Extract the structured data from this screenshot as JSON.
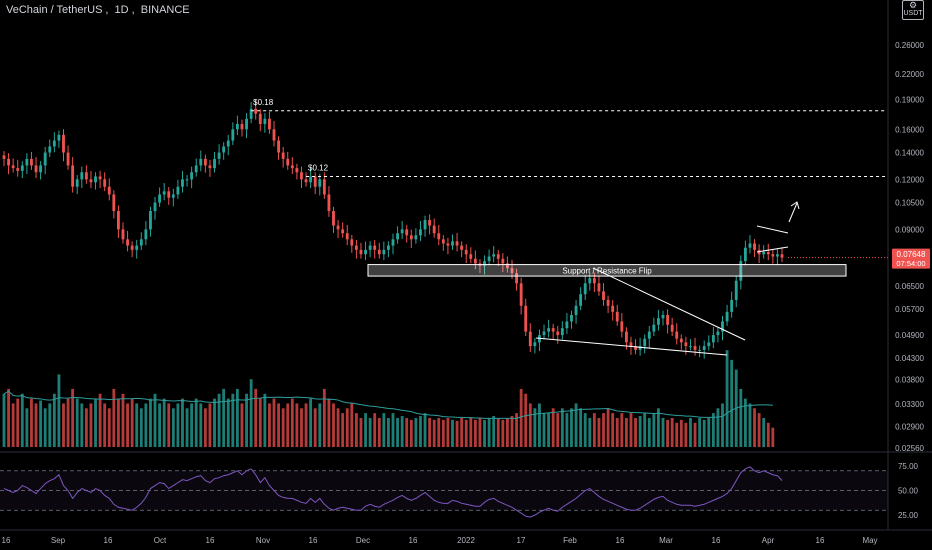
{
  "header": {
    "symbol": "VeChain / TetherUS",
    "interval": "1D",
    "exchange": "BINANCE"
  },
  "currency_badge": {
    "label": "USDT",
    "icon": "gear-icon"
  },
  "colors": {
    "up": "#26a69a",
    "down": "#ef5350",
    "price_tag": "#ef5350",
    "volume_ma": "#2e9e9e",
    "rsi": "#7e57c2",
    "text": "#b2b5be",
    "annotation": "#ffffff"
  },
  "chart_data": [
    {
      "type": "candlestick",
      "title": "VeChain / TetherUS, 1D, BINANCE",
      "y_scale": "log",
      "ylim": [
        0.0256,
        0.3
      ],
      "y_ticks": [
        "0.26000",
        "0.22000",
        "0.19000",
        "0.16000",
        "0.14000",
        "0.12000",
        "0.10500",
        "0.09000",
        "0.07648",
        "0.06500",
        "0.05700",
        "0.04900",
        "0.04300",
        "0.03800",
        "0.03300",
        "0.02900",
        "0.02560"
      ],
      "last_price": "0.07648",
      "countdown": "07:54:00",
      "x_tick_labels": [
        "16",
        "Sep",
        "16",
        "Oct",
        "16",
        "Nov",
        "16",
        "Dec",
        "16",
        "2022",
        "17",
        "Feb",
        "16",
        "Mar",
        "16",
        "Apr",
        "16",
        "May"
      ],
      "annotations": [
        {
          "text": "$0.18",
          "level": 0.178
        },
        {
          "text": "$0.12",
          "level": 0.122
        },
        {
          "text": "Support / Resistance Flip",
          "zone": [
            0.0688,
            0.0735
          ]
        }
      ],
      "close_path": [
        0.135,
        0.13,
        0.128,
        0.126,
        0.13,
        0.135,
        0.13,
        0.125,
        0.13,
        0.14,
        0.145,
        0.15,
        0.155,
        0.14,
        0.13,
        0.115,
        0.12,
        0.125,
        0.12,
        0.118,
        0.122,
        0.12,
        0.115,
        0.11,
        0.1,
        0.09,
        0.085,
        0.082,
        0.08,
        0.082,
        0.085,
        0.09,
        0.1,
        0.105,
        0.11,
        0.112,
        0.108,
        0.11,
        0.115,
        0.12,
        0.12,
        0.125,
        0.13,
        0.135,
        0.13,
        0.128,
        0.135,
        0.14,
        0.145,
        0.15,
        0.16,
        0.165,
        0.16,
        0.17,
        0.18,
        0.175,
        0.165,
        0.17,
        0.16,
        0.15,
        0.14,
        0.135,
        0.13,
        0.128,
        0.125,
        0.12,
        0.118,
        0.122,
        0.115,
        0.12,
        0.11,
        0.1,
        0.092,
        0.09,
        0.088,
        0.085,
        0.082,
        0.08,
        0.078,
        0.08,
        0.082,
        0.08,
        0.078,
        0.08,
        0.082,
        0.085,
        0.088,
        0.09,
        0.087,
        0.085,
        0.087,
        0.09,
        0.095,
        0.092,
        0.088,
        0.085,
        0.083,
        0.082,
        0.084,
        0.082,
        0.08,
        0.078,
        0.076,
        0.074,
        0.073,
        0.075,
        0.077,
        0.078,
        0.076,
        0.074,
        0.072,
        0.07,
        0.066,
        0.058,
        0.05,
        0.046,
        0.047,
        0.049,
        0.05,
        0.051,
        0.05,
        0.049,
        0.051,
        0.053,
        0.055,
        0.058,
        0.062,
        0.066,
        0.068,
        0.066,
        0.063,
        0.06,
        0.058,
        0.056,
        0.053,
        0.05,
        0.047,
        0.046,
        0.045,
        0.046,
        0.048,
        0.05,
        0.052,
        0.054,
        0.055,
        0.052,
        0.05,
        0.048,
        0.047,
        0.046,
        0.046,
        0.045,
        0.045,
        0.046,
        0.047,
        0.049,
        0.05,
        0.053,
        0.056,
        0.06,
        0.067,
        0.075,
        0.081,
        0.083,
        0.08,
        0.078,
        0.079,
        0.078,
        0.077,
        0.078,
        0.0765
      ],
      "volume": [
        0.55,
        0.6,
        0.45,
        0.5,
        0.55,
        0.4,
        0.5,
        0.45,
        0.48,
        0.4,
        0.45,
        0.55,
        0.75,
        0.45,
        0.5,
        0.6,
        0.5,
        0.45,
        0.4,
        0.45,
        0.5,
        0.55,
        0.45,
        0.4,
        0.6,
        0.5,
        0.55,
        0.45,
        0.5,
        0.45,
        0.4,
        0.45,
        0.5,
        0.55,
        0.45,
        0.5,
        0.45,
        0.4,
        0.45,
        0.5,
        0.4,
        0.45,
        0.5,
        0.45,
        0.4,
        0.45,
        0.5,
        0.55,
        0.6,
        0.5,
        0.55,
        0.6,
        0.45,
        0.55,
        0.7,
        0.6,
        0.5,
        0.55,
        0.45,
        0.5,
        0.45,
        0.4,
        0.45,
        0.5,
        0.45,
        0.4,
        0.45,
        0.5,
        0.4,
        0.45,
        0.6,
        0.5,
        0.45,
        0.4,
        0.35,
        0.4,
        0.45,
        0.35,
        0.3,
        0.35,
        0.3,
        0.35,
        0.3,
        0.35,
        0.3,
        0.35,
        0.3,
        0.32,
        0.3,
        0.28,
        0.3,
        0.32,
        0.35,
        0.3,
        0.28,
        0.3,
        0.28,
        0.3,
        0.28,
        0.27,
        0.3,
        0.28,
        0.3,
        0.28,
        0.3,
        0.28,
        0.3,
        0.32,
        0.3,
        0.28,
        0.3,
        0.32,
        0.35,
        0.6,
        0.55,
        0.45,
        0.4,
        0.45,
        0.35,
        0.35,
        0.4,
        0.35,
        0.4,
        0.35,
        0.4,
        0.45,
        0.4,
        0.35,
        0.3,
        0.35,
        0.3,
        0.35,
        0.4,
        0.35,
        0.3,
        0.35,
        0.3,
        0.35,
        0.3,
        0.32,
        0.35,
        0.3,
        0.35,
        0.4,
        0.3,
        0.28,
        0.3,
        0.25,
        0.28,
        0.25,
        0.3,
        0.25,
        0.3,
        0.28,
        0.3,
        0.35,
        0.4,
        0.45,
        1.0,
        0.9,
        0.8,
        0.6,
        0.5,
        0.45,
        0.4,
        0.35,
        0.3,
        0.25,
        0.2
      ],
      "rsi_path": [
        52,
        50,
        48,
        50,
        55,
        53,
        50,
        47,
        52,
        57,
        60,
        62,
        66,
        55,
        50,
        42,
        48,
        52,
        50,
        48,
        52,
        50,
        45,
        42,
        36,
        33,
        32,
        31,
        30,
        33,
        37,
        43,
        52,
        55,
        58,
        57,
        52,
        55,
        58,
        61,
        60,
        62,
        64,
        65,
        60,
        58,
        62,
        63,
        65,
        66,
        68,
        70,
        66,
        70,
        72,
        66,
        58,
        63,
        55,
        50,
        45,
        43,
        42,
        42,
        40,
        38,
        37,
        42,
        38,
        42,
        36,
        32,
        30,
        32,
        33,
        32,
        31,
        30,
        30,
        34,
        36,
        34,
        33,
        36,
        38,
        40,
        43,
        45,
        42,
        40,
        42,
        45,
        48,
        44,
        40,
        38,
        37,
        37,
        40,
        39,
        37,
        36,
        35,
        34,
        34,
        38,
        41,
        42,
        39,
        37,
        35,
        33,
        30,
        27,
        24,
        23,
        25,
        28,
        30,
        32,
        30,
        29,
        33,
        36,
        39,
        42,
        46,
        50,
        52,
        48,
        44,
        41,
        39,
        37,
        35,
        33,
        31,
        30,
        30,
        32,
        35,
        38,
        41,
        43,
        44,
        40,
        38,
        36,
        35,
        35,
        35,
        34,
        35,
        36,
        38,
        40,
        42,
        44,
        47,
        52,
        60,
        68,
        72,
        74,
        70,
        68,
        70,
        68,
        66,
        65,
        60
      ],
      "rsi_levels": {
        "upper": 70,
        "middle": 50,
        "lower": 30
      },
      "rsi_ticks": [
        "75.00",
        "50.00",
        "25.00"
      ]
    }
  ]
}
